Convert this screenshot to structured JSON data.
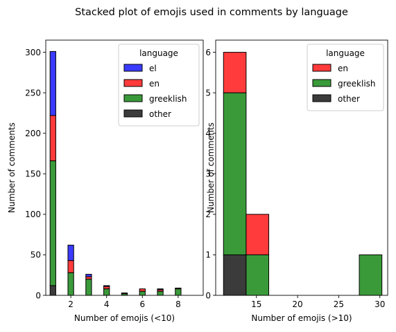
{
  "figure": {
    "title": "Stacked plot of emojis used in comments by language"
  },
  "chart_data": [
    {
      "type": "bar",
      "stacked": true,
      "xlabel": "Number of emojis (<10)",
      "ylabel": "Number of comments",
      "xlim": [
        0.6,
        9.4
      ],
      "ylim": [
        0,
        315
      ],
      "xticks": [
        2,
        4,
        6,
        8
      ],
      "yticks": [
        0,
        50,
        100,
        150,
        200,
        250,
        300
      ],
      "bar_width": 0.32,
      "legend": {
        "title": "language",
        "placement": "top-right"
      },
      "categories": [
        1,
        2,
        3,
        4,
        5,
        6,
        7,
        8,
        9
      ],
      "series": [
        {
          "name": "other",
          "color": "#3b3b3b",
          "values": [
            12,
            0,
            0,
            0,
            0,
            0,
            0,
            0,
            0
          ]
        },
        {
          "name": "greeklish",
          "color": "#3a9a3a",
          "values": [
            154,
            28,
            20,
            8,
            2,
            5,
            5,
            8,
            0
          ]
        },
        {
          "name": "en",
          "color": "#ff3b3b",
          "values": [
            56,
            15,
            3,
            3,
            1,
            3,
            2,
            1,
            0
          ]
        },
        {
          "name": "el",
          "color": "#3b3bff",
          "values": [
            79,
            19,
            3,
            1,
            0,
            0,
            1,
            0,
            0
          ]
        }
      ],
      "legend_order": [
        "el",
        "en",
        "greeklish",
        "other"
      ]
    },
    {
      "type": "bar",
      "stacked": true,
      "xlabel": "Number of emojis (>10)",
      "ylabel": "Number of comments",
      "xlim": [
        10.05,
        30.95
      ],
      "ylim": [
        0,
        6.3
      ],
      "xticks": [
        15,
        20,
        25,
        30
      ],
      "yticks": [
        0,
        1,
        2,
        3,
        4,
        5,
        6
      ],
      "legend": {
        "title": "language",
        "placement": "top-right"
      },
      "bins": [
        [
          11,
          13.75
        ],
        [
          13.75,
          16.5
        ],
        [
          16.5,
          19.25
        ],
        [
          19.25,
          22
        ],
        [
          22,
          24.75
        ],
        [
          24.75,
          27.5
        ],
        [
          27.5,
          30.25
        ]
      ],
      "series": [
        {
          "name": "other",
          "color": "#3b3b3b",
          "values": [
            1,
            0,
            0,
            0,
            0,
            0,
            0
          ]
        },
        {
          "name": "greeklish",
          "color": "#3a9a3a",
          "values": [
            4,
            1,
            0,
            0,
            0,
            0,
            1
          ]
        },
        {
          "name": "en",
          "color": "#ff3b3b",
          "values": [
            1,
            1,
            0,
            0,
            0,
            0,
            0
          ]
        }
      ],
      "legend_order": [
        "en",
        "greeklish",
        "other"
      ]
    }
  ]
}
